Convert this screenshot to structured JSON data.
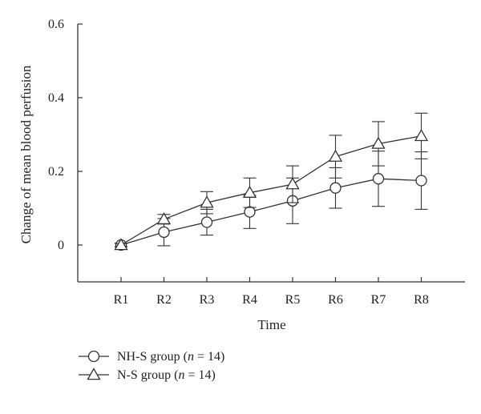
{
  "chart_data": {
    "type": "line",
    "title": "",
    "xlabel": "Time",
    "ylabel": "Change of mean blood perfusion",
    "categories": [
      "R1",
      "R2",
      "R3",
      "R4",
      "R5",
      "R6",
      "R7",
      "R8"
    ],
    "ylim": [
      -0.1,
      0.6
    ],
    "yticks": [
      "0",
      "0.2",
      "0.4",
      "0.6"
    ],
    "grid": false,
    "legend_position": "bottom-left",
    "series": [
      {
        "name": "NH-S group (n = 14)",
        "legend": {
          "prefix": "NH-S group (",
          "italic": "n",
          "suffix": " = 14)"
        },
        "marker": "circle",
        "values": [
          0.0,
          0.035,
          0.062,
          0.09,
          0.12,
          0.155,
          0.18,
          0.175
        ],
        "errors": [
          0.005,
          0.037,
          0.035,
          0.045,
          0.062,
          0.055,
          0.075,
          0.078
        ]
      },
      {
        "name": "N-S group (n = 14)",
        "legend": {
          "prefix": "N-S group (",
          "italic": "n",
          "suffix": " = 14)"
        },
        "marker": "triangle",
        "values": [
          0.0,
          0.07,
          0.115,
          0.142,
          0.165,
          0.24,
          0.275,
          0.296
        ],
        "errors": [
          0.004,
          0.013,
          0.03,
          0.04,
          0.05,
          0.058,
          0.06,
          0.062
        ]
      }
    ]
  }
}
